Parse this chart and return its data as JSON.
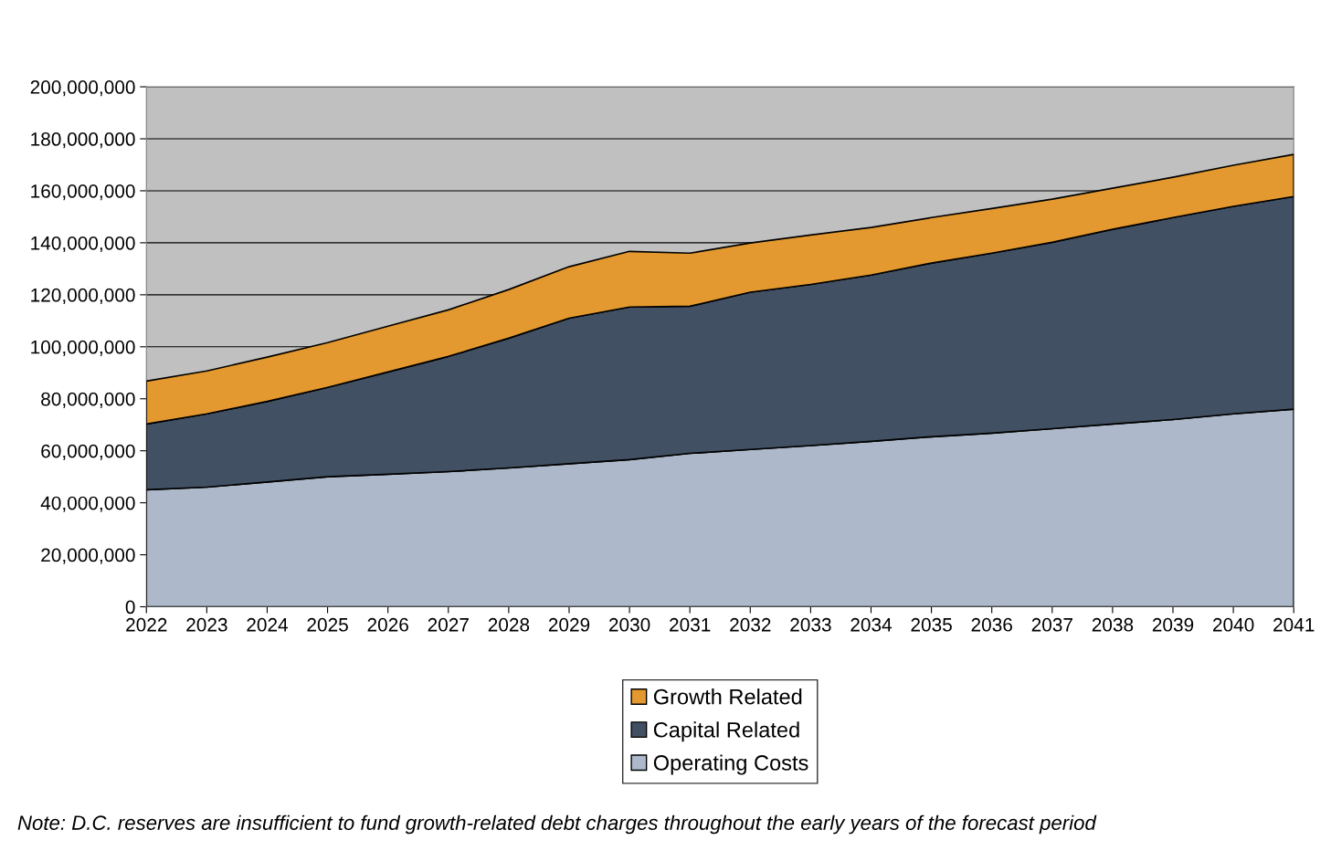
{
  "chart_data": {
    "type": "area",
    "stacked": true,
    "categories": [
      "2022",
      "2023",
      "2024",
      "2025",
      "2026",
      "2027",
      "2028",
      "2029",
      "2030",
      "2031",
      "2032",
      "2033",
      "2034",
      "2035",
      "2036",
      "2037",
      "2038",
      "2039",
      "2040",
      "2041"
    ],
    "series": [
      {
        "name": "Operating Costs",
        "color": "#adb9ca",
        "values": [
          45000000,
          46000000,
          48000000,
          50000000,
          51000000,
          52000000,
          53400000,
          55000000,
          56600000,
          59000000,
          60500000,
          62000000,
          63600000,
          65400000,
          66800000,
          68500000,
          70300000,
          72000000,
          74200000,
          76000000
        ]
      },
      {
        "name": "Capital Related",
        "color": "#415062",
        "values": [
          25300000,
          28200000,
          31000000,
          34400000,
          39300000,
          44300000,
          49900000,
          56000000,
          58700000,
          56600000,
          60500000,
          62000000,
          64000000,
          66800000,
          69200000,
          71700000,
          74900000,
          77700000,
          79800000,
          81800000
        ]
      },
      {
        "name": "Growth Related",
        "color": "#e3992f",
        "values": [
          16500000,
          16500000,
          17000000,
          17200000,
          17600000,
          17900000,
          18700000,
          19800000,
          21400000,
          20400000,
          18900000,
          19000000,
          18300000,
          17500000,
          17200000,
          16600000,
          15800000,
          15500000,
          15800000,
          16200000
        ]
      }
    ],
    "ylim": [
      0,
      200000000
    ],
    "yticks": [
      0,
      {
        "value": 20000000,
        "label": "20,000,000"
      },
      {
        "value": 40000000,
        "label": "40,000,000"
      },
      {
        "value": 60000000,
        "label": "60,000,000"
      },
      {
        "value": 80000000,
        "label": "80,000,000"
      },
      {
        "value": 100000000,
        "label": "100,000,000"
      },
      {
        "value": 120000000,
        "label": "120,000,000"
      },
      {
        "value": 140000000,
        "label": "140,000,000"
      },
      {
        "value": 160000000,
        "label": "160,000,000"
      },
      {
        "value": 180000000,
        "label": "180,000,000"
      },
      {
        "value": 200000000,
        "label": "200,000,000"
      }
    ],
    "grid": "y",
    "legend": "bottom",
    "annotations": [
      "Note: D.C. reserves are insufficient to fund growth-related debt charges throughout the early years of the forecast period"
    ]
  }
}
